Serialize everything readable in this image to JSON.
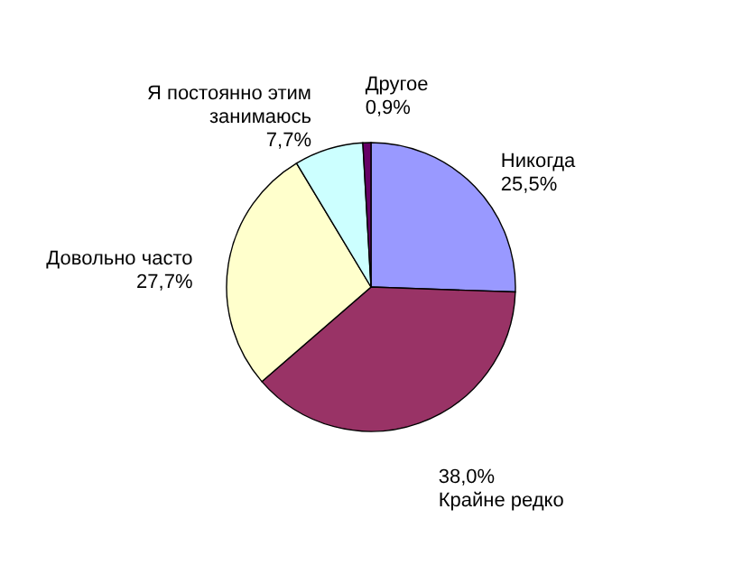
{
  "chart_data": {
    "type": "pie",
    "categories": [
      "Никогда",
      "Крайне редко",
      "Довольно часто",
      "Я постоянно этим занимаюсь",
      "Другое"
    ],
    "values": [
      25.5,
      38.0,
      27.7,
      7.7,
      0.9
    ],
    "value_labels": [
      "25,5%",
      "38,0%",
      "27,7%",
      "7,7%",
      "0,9%"
    ],
    "colors": [
      "#9999ff",
      "#993366",
      "#ffffcc",
      "#ccffff",
      "#660066"
    ],
    "legend": false
  }
}
